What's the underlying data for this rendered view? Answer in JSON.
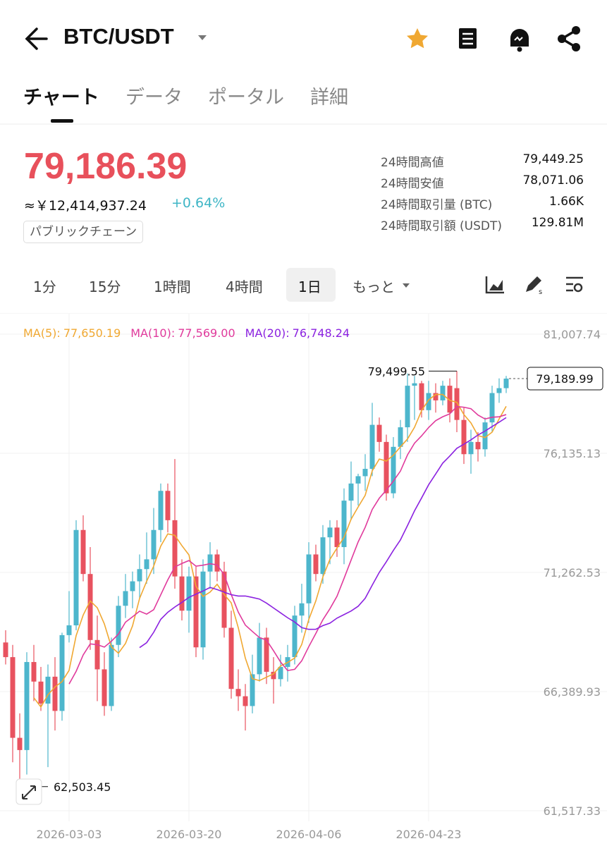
{
  "header": {
    "pair": "BTC/USDT"
  },
  "tabs": [
    "チャート",
    "データ",
    "ポータル",
    "詳細"
  ],
  "price": {
    "last": "79,186.39",
    "fiat": "≈￥12,414,937.24",
    "change": "+0.64%",
    "tag": "パブリックチェーン"
  },
  "stats": [
    {
      "label": "24時間高値",
      "value": "79,449.25"
    },
    {
      "label": "24時間安値",
      "value": "78,071.06"
    },
    {
      "label": "24時間取引量 (BTC)",
      "value": "1.66K"
    },
    {
      "label": "24時間取引額 (USDT)",
      "value": "129.81M"
    }
  ],
  "timeframes": [
    "1分",
    "15分",
    "1時間",
    "4時間",
    "1日",
    "もっと"
  ],
  "chart_data": {
    "type": "candlestick",
    "categories": [
      null,
      null,
      null,
      null,
      null,
      null,
      null,
      null,
      null,
      "2026-03-03",
      null,
      null,
      null,
      null,
      null,
      null,
      null,
      null,
      null,
      null,
      null,
      null,
      null,
      null,
      null,
      null,
      "2026-03-20",
      null,
      null,
      null,
      null,
      null,
      null,
      null,
      null,
      null,
      null,
      null,
      null,
      null,
      null,
      null,
      null,
      "2026-04-06",
      null,
      null,
      null,
      null,
      null,
      null,
      null,
      null,
      null,
      null,
      null,
      null,
      null,
      null,
      null,
      null,
      "2026-04-23",
      null,
      null,
      null,
      null,
      null,
      null,
      null,
      null,
      null,
      null,
      null
    ],
    "open": [
      68400,
      67800,
      64500,
      64000,
      67600,
      66800,
      65900,
      67000,
      65600,
      68700,
      69100,
      73000,
      71200,
      68500,
      67300,
      65800,
      68300,
      69900,
      70500,
      70900,
      71400,
      71800,
      73000,
      74600,
      73400,
      71100,
      69700,
      71100,
      68200,
      71300,
      72000,
      71300,
      69000,
      66500,
      66200,
      65800,
      67100,
      68600,
      67200,
      66900,
      67400,
      67800,
      69500,
      70000,
      72000,
      71200,
      72700,
      73100,
      72300,
      74200,
      74900,
      75200,
      75500,
      77300,
      76600,
      74500,
      76400,
      77200,
      78900,
      79000,
      77900,
      78600,
      78300,
      78900,
      78800,
      77500,
      76100,
      76600,
      76300,
      77400,
      78600,
      78800
    ],
    "high": [
      68900,
      68300,
      65500,
      68000,
      68300,
      67400,
      67500,
      67800,
      68800,
      70500,
      73400,
      73600,
      72300,
      69500,
      68000,
      68600,
      70300,
      71200,
      71300,
      72000,
      72900,
      73900,
      74900,
      74900,
      75900,
      71800,
      71500,
      71500,
      71800,
      72500,
      72200,
      71700,
      69700,
      67300,
      66700,
      67900,
      69200,
      69000,
      67800,
      67900,
      68300,
      69900,
      70800,
      72500,
      72400,
      73200,
      73400,
      73400,
      74700,
      75800,
      75300,
      76100,
      78200,
      77600,
      76900,
      76800,
      77500,
      79400,
      79300,
      79100,
      79100,
      79000,
      79100,
      79200,
      79499.55,
      78000,
      77100,
      77000,
      77600,
      78900,
      79200,
      79300
    ],
    "low": [
      67500,
      63500,
      62503.45,
      63000,
      66000,
      65600,
      63300,
      64800,
      65200,
      68400,
      68900,
      70900,
      68100,
      66000,
      65400,
      65600,
      67800,
      69400,
      69800,
      70200,
      70800,
      71200,
      72500,
      72900,
      70600,
      69300,
      68800,
      67800,
      67700,
      70600,
      70900,
      68600,
      66100,
      65600,
      64800,
      65500,
      66800,
      66700,
      65900,
      66600,
      66800,
      67500,
      68800,
      69200,
      70900,
      70800,
      71600,
      71900,
      71600,
      73400,
      74000,
      74600,
      75200,
      76200,
      74200,
      74300,
      75900,
      76600,
      77500,
      77600,
      77500,
      77800,
      78100,
      77400,
      77000,
      75700,
      75300,
      75800,
      76000,
      77000,
      78200,
      78600
    ],
    "close": [
      67800,
      64500,
      64000,
      67600,
      66800,
      65900,
      67000,
      65600,
      68700,
      69100,
      73000,
      71200,
      68500,
      67300,
      65800,
      68300,
      69900,
      70500,
      70900,
      71400,
      71800,
      73000,
      74600,
      73400,
      71100,
      69700,
      71100,
      68200,
      71300,
      72000,
      71300,
      69000,
      66500,
      66200,
      65800,
      67100,
      68600,
      67200,
      66900,
      67400,
      67800,
      69500,
      70000,
      72000,
      71200,
      72700,
      73100,
      72300,
      74200,
      74900,
      75200,
      75500,
      77300,
      76600,
      74500,
      76400,
      77200,
      78900,
      79000,
      77900,
      78600,
      78300,
      78900,
      77800,
      77500,
      76100,
      76600,
      76300,
      77400,
      78600,
      78800,
      79189.99
    ],
    "up_color": "#4db6cc",
    "down_color": "#e8525f",
    "ma": [
      {
        "name": "MA(5):",
        "value": 77650.19,
        "value_label": "77,650.19",
        "color": "#f0a832"
      },
      {
        "name": "MA(10):",
        "value": 77569.0,
        "value_label": "77,569.00",
        "color": "#e03a9c"
      },
      {
        "name": "MA(20):",
        "value": 76748.24,
        "value_label": "76,748.24",
        "color": "#8b22e0"
      }
    ],
    "high_label": "79,499.55",
    "low_label": "62,503.45",
    "last_label": "79,189.99",
    "ylim": [
      61085,
      81844
    ],
    "yticks": [
      {
        "value": 61517.33,
        "label": "61,517.33"
      },
      {
        "value": 66389.93,
        "label": "66,389.93"
      },
      {
        "value": 71262.53,
        "label": "71,262.53"
      },
      {
        "value": 76135.13,
        "label": "76,135.13"
      },
      {
        "value": 81007.74,
        "label": "81,007.74"
      }
    ],
    "grid": true
  }
}
